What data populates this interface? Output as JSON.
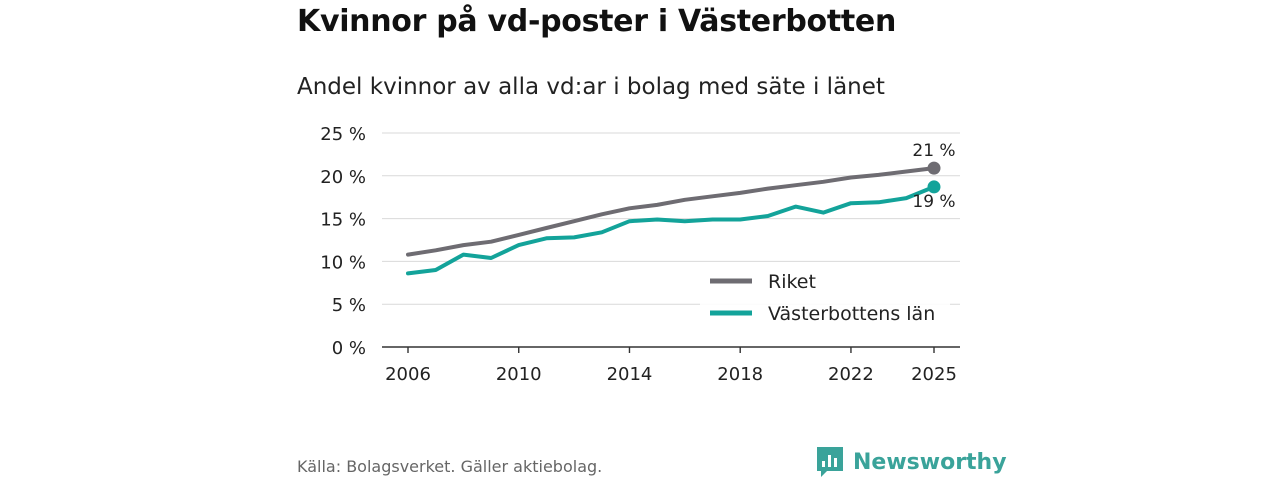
{
  "title": "Kvinnor på vd-poster i Västerbotten",
  "subtitle": "Andel kvinnor av alla vd:ar i bolag med säte i länet",
  "source": "Källa: Bolagsverket. Gäller aktiebolag.",
  "brand": {
    "name": "Newsworthy",
    "icon": "newsworthy-logo-icon",
    "color": "#3aa39a"
  },
  "chart_data": {
    "type": "line",
    "x": [
      2006,
      2007,
      2008,
      2009,
      2010,
      2011,
      2012,
      2013,
      2014,
      2015,
      2016,
      2017,
      2018,
      2019,
      2020,
      2021,
      2022,
      2023,
      2024,
      2025
    ],
    "series": [
      {
        "name": "Riket",
        "color": "#6e6c72",
        "values": [
          10.8,
          11.3,
          11.9,
          12.3,
          13.1,
          13.9,
          14.7,
          15.5,
          16.2,
          16.6,
          17.2,
          17.6,
          18.0,
          18.5,
          18.9,
          19.3,
          19.8,
          20.1,
          20.5,
          20.9
        ],
        "end_label": "21 %"
      },
      {
        "name": "Västerbottens län",
        "color": "#13a39a",
        "values": [
          8.6,
          9.0,
          10.8,
          10.4,
          11.9,
          12.7,
          12.8,
          13.4,
          14.7,
          14.9,
          14.7,
          14.9,
          14.9,
          15.3,
          16.4,
          15.7,
          16.8,
          16.9,
          17.4,
          18.7
        ],
        "end_label": "19 %"
      }
    ],
    "xticks": [
      "2006",
      "2010",
      "2014",
      "2018",
      "2022",
      "2025"
    ],
    "yticks": [
      "0 %",
      "5 %",
      "10 %",
      "15 %",
      "20 %",
      "25 %"
    ],
    "ylim": [
      0,
      25
    ],
    "xlim": [
      2006,
      2025
    ],
    "legend_position": "bottom-right",
    "grid": true
  }
}
